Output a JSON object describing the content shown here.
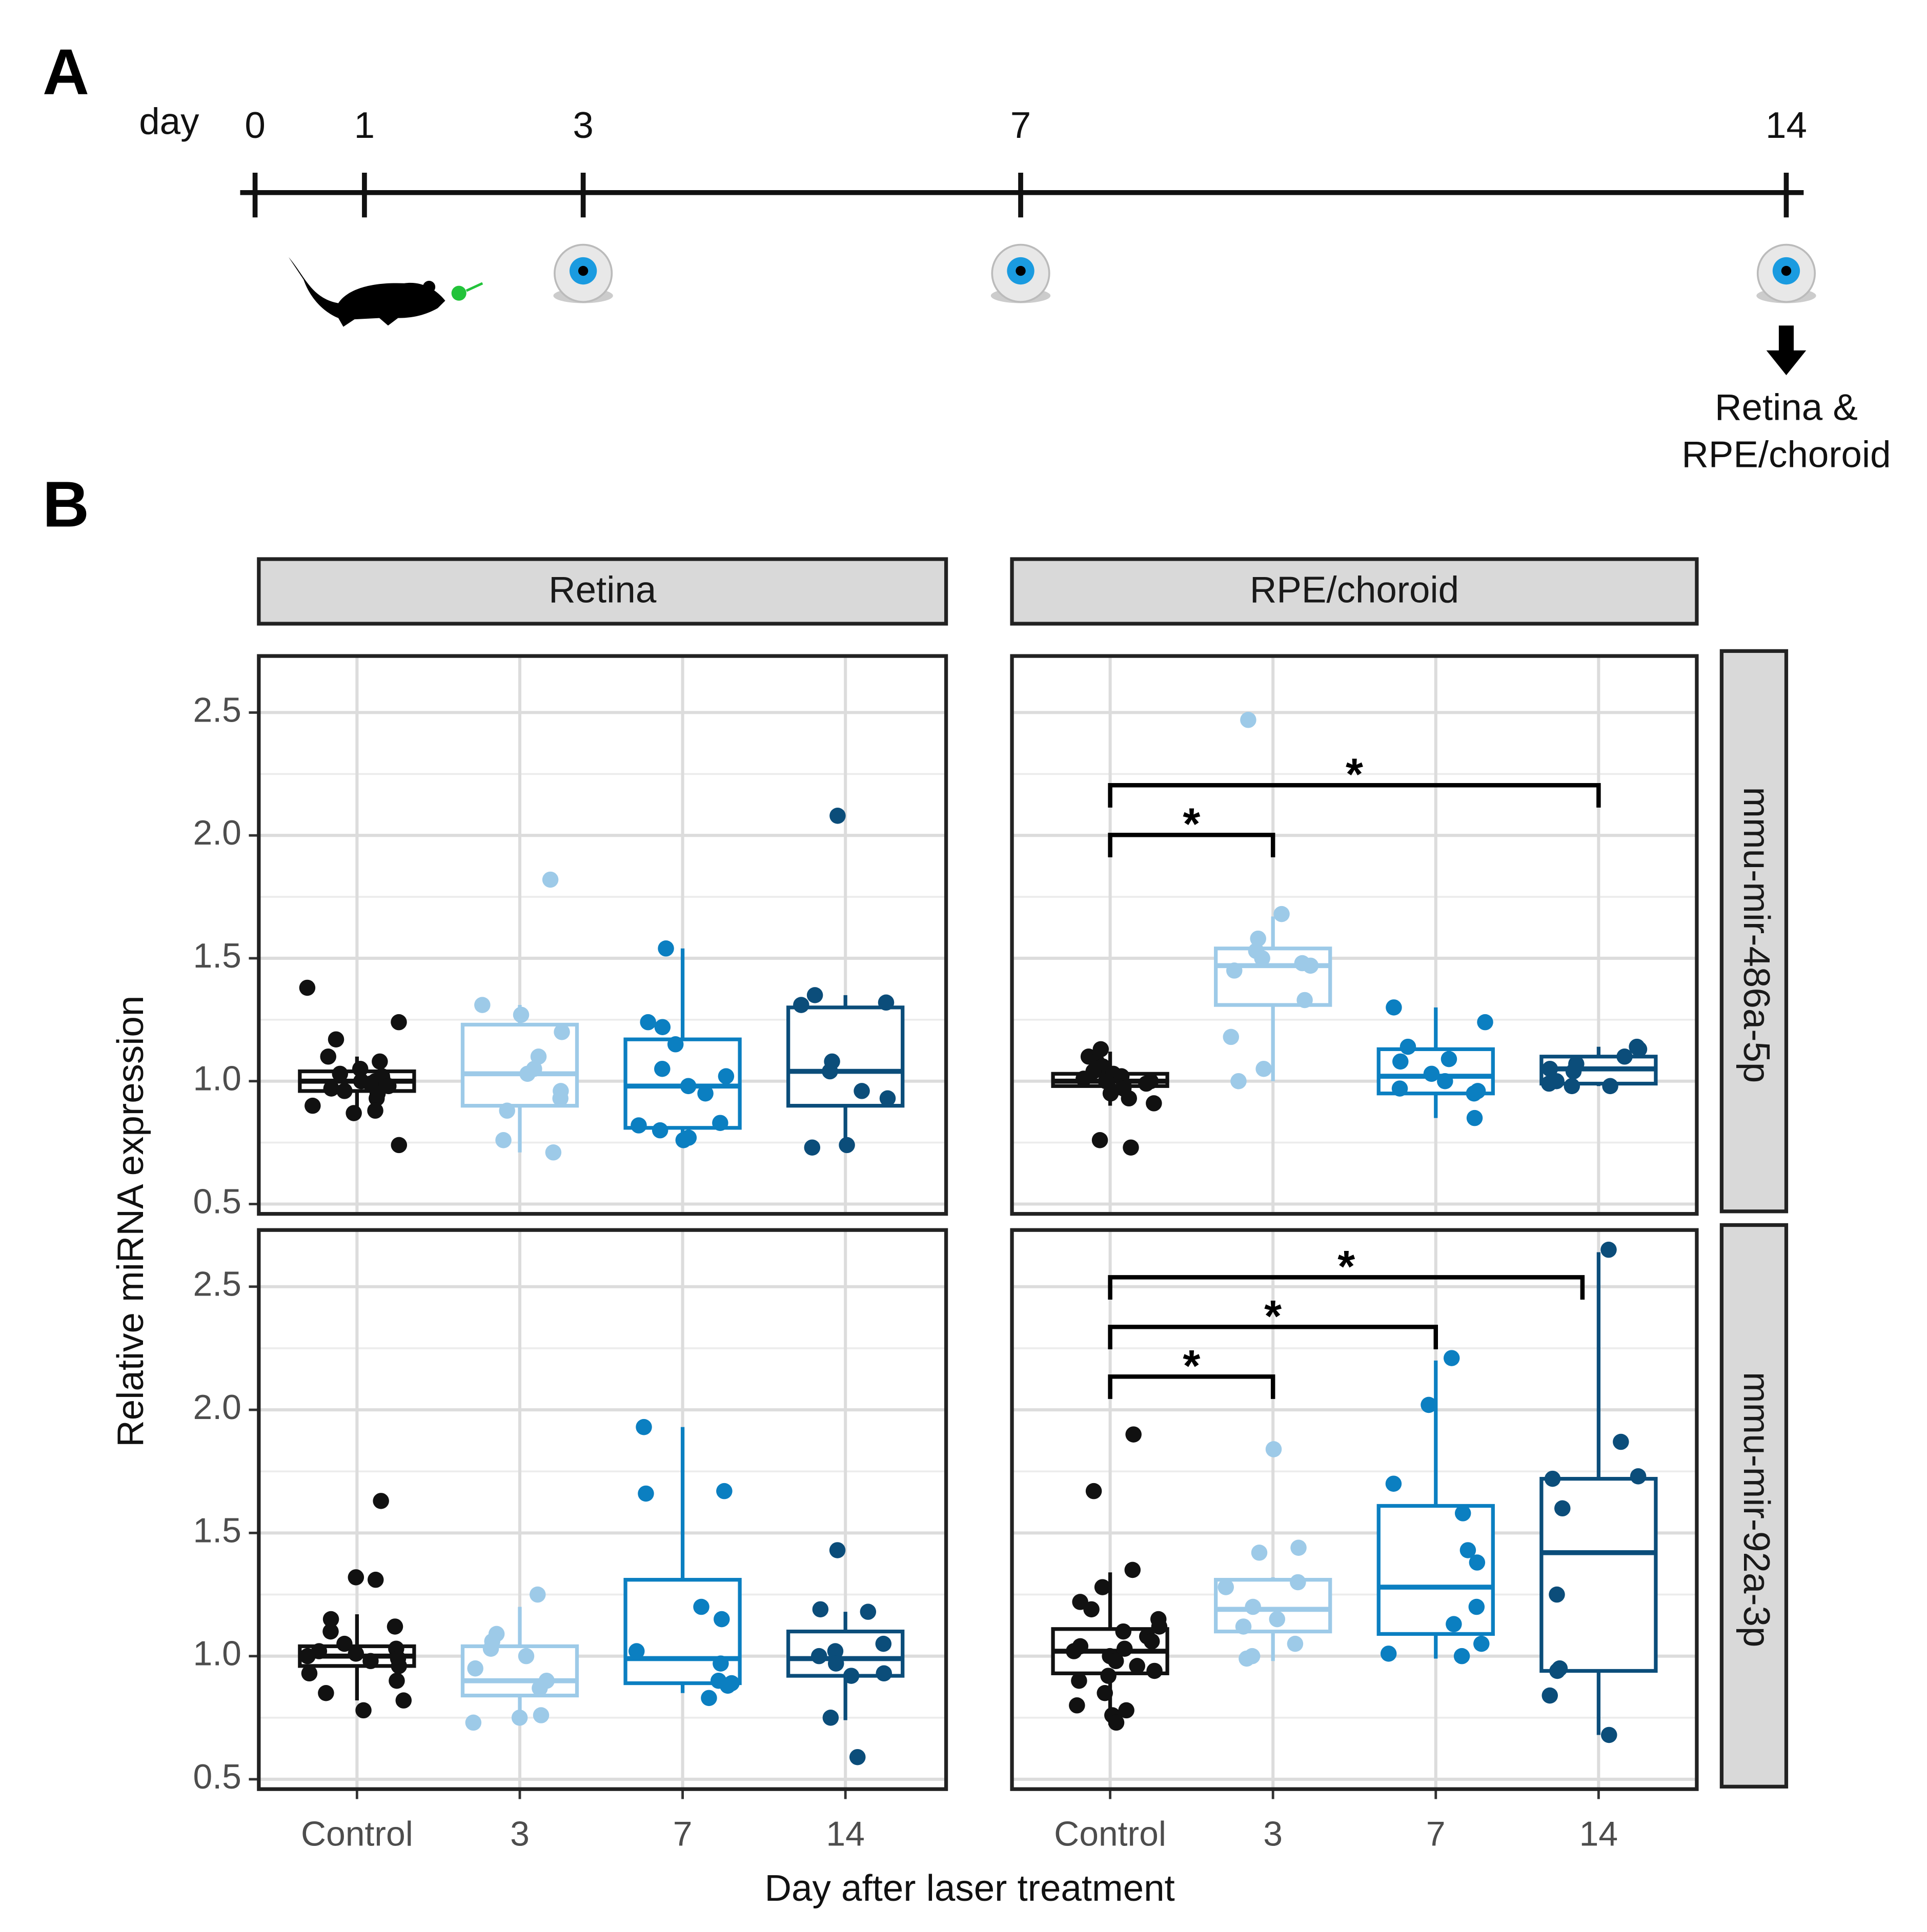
{
  "panel_labels": [
    "A",
    "B"
  ],
  "timeline": {
    "label": "day",
    "days": [
      0,
      1,
      3,
      7,
      14
    ],
    "xlim": [
      0,
      14
    ],
    "eye_days": [
      3,
      7,
      14
    ],
    "note": [
      "Retina &",
      "RPE/choroid"
    ]
  },
  "chart_data": {
    "type": "box",
    "y_label": "Relative miRNA expression",
    "x_label": "Day after laser treatment",
    "columns": [
      "Retina",
      "RPE/choroid"
    ],
    "rows": [
      "mmu-mir-486a-5p",
      "mmu-mir-92a-3p"
    ],
    "categories": [
      "Control",
      "3",
      "7",
      "14"
    ],
    "colors": [
      "#111111",
      "#9dcae8",
      "#0b7fc1",
      "#0b4d7a"
    ],
    "ylim": [
      0.46,
      2.73
    ],
    "yticks": [
      0.5,
      {
        "value": 1,
        "label": "1.0"
      },
      1.5,
      {
        "value": 2,
        "label": "2.0"
      },
      2.5
    ],
    "minor_yticks": [
      0.75,
      1.25,
      1.75,
      2.25
    ],
    "grid": true,
    "panels": [
      {
        "boxes": [
          {
            "q1": 0.96,
            "median": 1.0,
            "q3": 1.04,
            "whisker_low": 0.87,
            "whisker_high": 1.1,
            "points": [
              1.38,
              1.24,
              1.17,
              1.1,
              1.08,
              1.05,
              1.03,
              1.02,
              1.01,
              1.0,
              1.0,
              0.99,
              0.98,
              0.97,
              0.96,
              0.95,
              0.93,
              0.9,
              0.88,
              0.87,
              0.74
            ]
          },
          {
            "q1": 0.9,
            "median": 1.03,
            "q3": 1.23,
            "whisker_low": 0.71,
            "whisker_high": 1.31,
            "points": [
              1.82,
              1.31,
              1.27,
              1.2,
              1.1,
              1.05,
              1.03,
              0.96,
              0.93,
              0.88,
              0.76,
              0.71
            ]
          },
          {
            "q1": 0.81,
            "median": 0.98,
            "q3": 1.17,
            "whisker_low": 0.76,
            "whisker_high": 1.54,
            "points": [
              1.54,
              1.24,
              1.22,
              1.15,
              1.05,
              1.02,
              0.98,
              0.95,
              0.83,
              0.82,
              0.8,
              0.77,
              0.76
            ]
          },
          {
            "q1": 0.9,
            "median": 1.04,
            "q3": 1.3,
            "whisker_low": 0.73,
            "whisker_high": 1.35,
            "points": [
              2.08,
              1.35,
              1.32,
              1.31,
              1.08,
              1.04,
              0.96,
              0.93,
              0.74,
              0.73
            ]
          }
        ],
        "significance": []
      },
      {
        "boxes": [
          {
            "q1": 0.98,
            "median": 1.0,
            "q3": 1.03,
            "whisker_low": 0.9,
            "whisker_high": 1.12,
            "points": [
              1.13,
              1.1,
              1.08,
              1.06,
              1.04,
              1.03,
              1.02,
              1.01,
              1.0,
              1.0,
              0.99,
              0.98,
              0.97,
              0.96,
              0.95,
              0.93,
              0.91,
              0.76,
              0.73
            ]
          },
          {
            "q1": 1.31,
            "median": 1.47,
            "q3": 1.54,
            "whisker_low": 1.0,
            "whisker_high": 1.67,
            "points": [
              2.47,
              1.68,
              1.58,
              1.53,
              1.5,
              1.48,
              1.47,
              1.45,
              1.33,
              1.18,
              1.05,
              1.0
            ]
          },
          {
            "q1": 0.95,
            "median": 1.02,
            "q3": 1.13,
            "whisker_low": 0.85,
            "whisker_high": 1.3,
            "points": [
              1.3,
              1.24,
              1.14,
              1.09,
              1.08,
              1.03,
              1.0,
              0.97,
              0.96,
              0.95,
              0.85
            ]
          },
          {
            "q1": 0.99,
            "median": 1.05,
            "q3": 1.1,
            "whisker_low": 0.98,
            "whisker_high": 1.14,
            "points": [
              1.14,
              1.13,
              1.1,
              1.07,
              1.05,
              1.04,
              1.0,
              0.99,
              0.98,
              0.98
            ]
          }
        ],
        "significance": [
          {
            "pair": [
              0,
              1
            ],
            "label": "*"
          },
          {
            "pair": [
              0,
              3
            ],
            "label": "*"
          }
        ]
      },
      {
        "boxes": [
          {
            "q1": 0.96,
            "median": 1.0,
            "q3": 1.04,
            "whisker_low": 0.82,
            "whisker_high": 1.17,
            "points": [
              1.63,
              1.32,
              1.31,
              1.15,
              1.12,
              1.1,
              1.05,
              1.03,
              1.02,
              1.01,
              1.0,
              0.99,
              0.98,
              0.96,
              0.93,
              0.9,
              0.85,
              0.82,
              0.78
            ]
          },
          {
            "q1": 0.84,
            "median": 0.9,
            "q3": 1.04,
            "whisker_low": 0.74,
            "whisker_high": 1.2,
            "points": [
              1.25,
              1.09,
              1.06,
              1.03,
              1.0,
              0.95,
              0.9,
              0.87,
              0.76,
              0.75,
              0.73
            ]
          },
          {
            "q1": 0.89,
            "median": 0.99,
            "q3": 1.31,
            "whisker_low": 0.85,
            "whisker_high": 1.93,
            "points": [
              1.93,
              1.67,
              1.66,
              1.2,
              1.15,
              1.02,
              0.97,
              0.9,
              0.89,
              0.88,
              0.83
            ]
          },
          {
            "q1": 0.92,
            "median": 0.99,
            "q3": 1.1,
            "whisker_low": 0.74,
            "whisker_high": 1.18,
            "points": [
              1.43,
              1.19,
              1.18,
              1.05,
              1.02,
              1.0,
              0.97,
              0.93,
              0.92,
              0.75,
              0.59
            ]
          }
        ],
        "significance": []
      },
      {
        "boxes": [
          {
            "q1": 0.93,
            "median": 1.02,
            "q3": 1.11,
            "whisker_low": 0.72,
            "whisker_high": 1.34,
            "points": [
              1.9,
              1.67,
              1.35,
              1.28,
              1.22,
              1.19,
              1.15,
              1.12,
              1.1,
              1.08,
              1.06,
              1.04,
              1.03,
              1.02,
              1.0,
              0.98,
              0.96,
              0.94,
              0.92,
              0.9,
              0.85,
              0.8,
              0.78,
              0.76,
              0.73
            ]
          },
          {
            "q1": 1.1,
            "median": 1.19,
            "q3": 1.31,
            "whisker_low": 0.98,
            "whisker_high": 1.32,
            "points": [
              1.84,
              1.44,
              1.42,
              1.3,
              1.28,
              1.2,
              1.15,
              1.12,
              1.05,
              1.0,
              0.99
            ]
          },
          {
            "q1": 1.09,
            "median": 1.28,
            "q3": 1.61,
            "whisker_low": 0.99,
            "whisker_high": 2.2,
            "points": [
              2.21,
              2.02,
              1.7,
              1.58,
              1.43,
              1.38,
              1.2,
              1.13,
              1.05,
              1.01,
              1.0
            ]
          },
          {
            "q1": 0.94,
            "median": 1.42,
            "q3": 1.72,
            "whisker_low": 0.68,
            "whisker_high": 2.64,
            "points": [
              2.65,
              1.87,
              1.73,
              1.72,
              1.6,
              1.25,
              0.95,
              0.94,
              0.84,
              0.68
            ]
          }
        ],
        "significance": [
          {
            "pair": [
              0,
              1
            ],
            "label": "*"
          },
          {
            "pair": [
              0,
              2
            ],
            "label": "*"
          },
          {
            "pair": [
              0,
              3
            ],
            "label": "*"
          }
        ]
      }
    ]
  }
}
